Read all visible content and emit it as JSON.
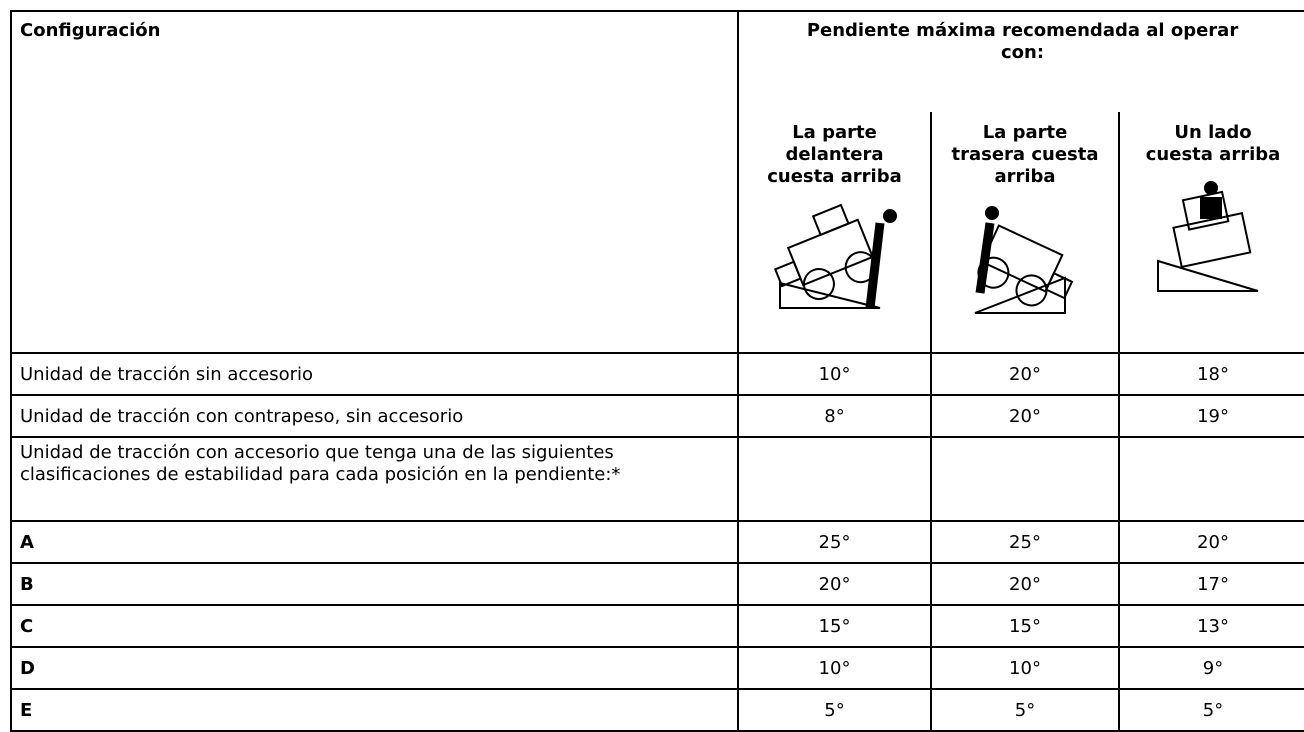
{
  "table": {
    "header": {
      "configuration": "Configuración",
      "group": "Pendiente máxima recomendada al operar con:",
      "columns": [
        "La parte delantera cuesta arriba",
        "La parte trasera cuesta arriba",
        "Un lado cuesta arriba"
      ]
    },
    "rows": [
      [
        "Unidad de tracción sin accesorio",
        "10°",
        "20°",
        "18°"
      ],
      [
        "Unidad de tracción con contrapeso, sin accesorio",
        "8°",
        "20°",
        "19°"
      ]
    ],
    "note": "Unidad de tracción con accesorio que tenga una de las siguientes clasificaciones de estabilidad para cada posición en la pendiente:*",
    "classes": [
      [
        "A",
        "25°",
        "25°",
        "20°"
      ],
      [
        "B",
        "20°",
        "20°",
        "17°"
      ],
      [
        "C",
        "15°",
        "15°",
        "13°"
      ],
      [
        "D",
        "10°",
        "10°",
        "9°"
      ],
      [
        "E",
        "5°",
        "5°",
        "5°"
      ]
    ]
  }
}
